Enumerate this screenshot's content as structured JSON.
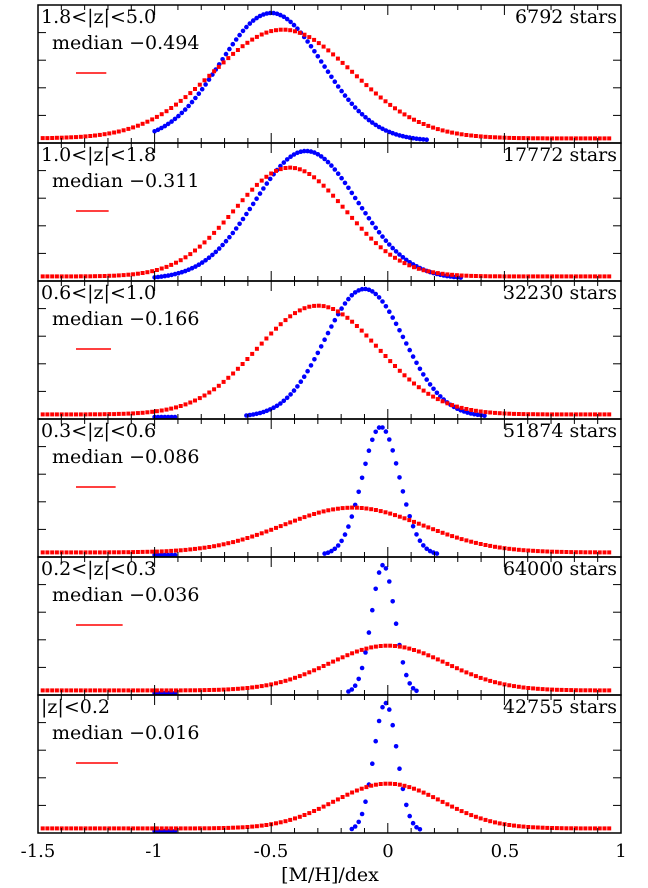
{
  "chart_data": {
    "type": "scatter",
    "xlabel": "[M/H]/dex",
    "xlim": [
      -1.5,
      1.0
    ],
    "x_ticks": [
      "-1.5",
      "-1",
      "-0.5",
      "0",
      "0.5",
      "1"
    ],
    "colors": {
      "series_a": "#0000ff",
      "series_b": "#ff0000"
    },
    "panels": [
      {
        "range_label": "1.8<|z|<5.0",
        "median_label": "median −0.494",
        "stars_label": "6792 stars",
        "bar_width_dex": 0.13,
        "blue_mode": -0.5,
        "blue_width": 0.22,
        "red_mode": -0.45,
        "red_width": 0.3
      },
      {
        "range_label": "1.0<|z|<1.8",
        "median_label": "median −0.311",
        "stars_label": "17772 stars",
        "bar_width_dex": 0.14,
        "blue_mode": -0.35,
        "blue_width": 0.22,
        "red_mode": -0.42,
        "red_width": 0.24
      },
      {
        "range_label": "0.6<|z|<1.0",
        "median_label": "median −0.166",
        "stars_label": "32230 stars",
        "bar_width_dex": 0.15,
        "blue_mode": -0.1,
        "blue_width": 0.17,
        "red_mode": -0.3,
        "red_width": 0.26
      },
      {
        "range_label": "0.3<|z|<0.6",
        "median_label": "median −0.086",
        "stars_label": "51874 stars",
        "bar_width_dex": 0.17,
        "blue_mode": -0.03,
        "blue_width": 0.08,
        "red_mode": -0.15,
        "red_width": 0.3
      },
      {
        "range_label": "0.2<|z|<0.3",
        "median_label": "median −0.036",
        "stars_label": "64000 stars",
        "bar_width_dex": 0.2,
        "blue_mode": -0.02,
        "blue_width": 0.05,
        "red_mode": 0.0,
        "red_width": 0.25
      },
      {
        "range_label": "|z|<0.2",
        "median_label": "median −0.016",
        "stars_label": "42755 stars",
        "bar_width_dex": 0.18,
        "blue_mode": -0.01,
        "blue_width": 0.05,
        "red_mode": 0.0,
        "red_width": 0.23
      }
    ]
  }
}
